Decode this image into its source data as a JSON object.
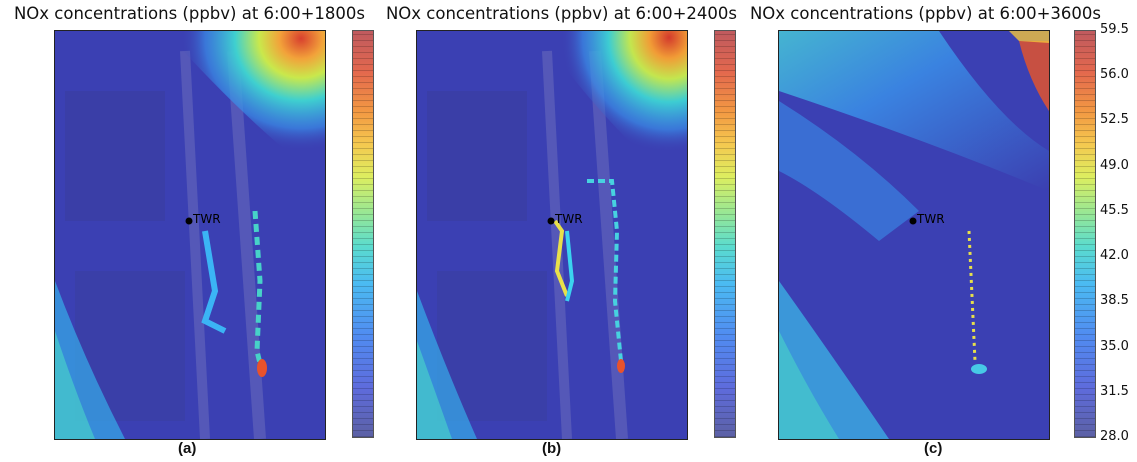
{
  "chart_data": [
    {
      "type": "heatmap",
      "title": "NOx concentrations (ppbv) at 6:00+1800s",
      "panel_label": "(a)",
      "marker_label": "TWR",
      "colorbar": false
    },
    {
      "type": "heatmap",
      "title": "NOx concentrations (ppbv) at 6:00+2400s",
      "panel_label": "(b)",
      "marker_label": "TWR",
      "colorbar": false
    },
    {
      "type": "heatmap",
      "title": "NOx concentrations (ppbv) at 6:00+3600s",
      "panel_label": "(c)",
      "marker_label": "TWR",
      "colorbar": true
    }
  ],
  "colorbar": {
    "ticks": [
      "59.5",
      "56.0",
      "52.5",
      "49.0",
      "45.5",
      "42.0",
      "38.5",
      "35.0",
      "31.5",
      "28.0"
    ],
    "vmin": 28.0,
    "vmax": 59.5,
    "colormap": "jet"
  }
}
